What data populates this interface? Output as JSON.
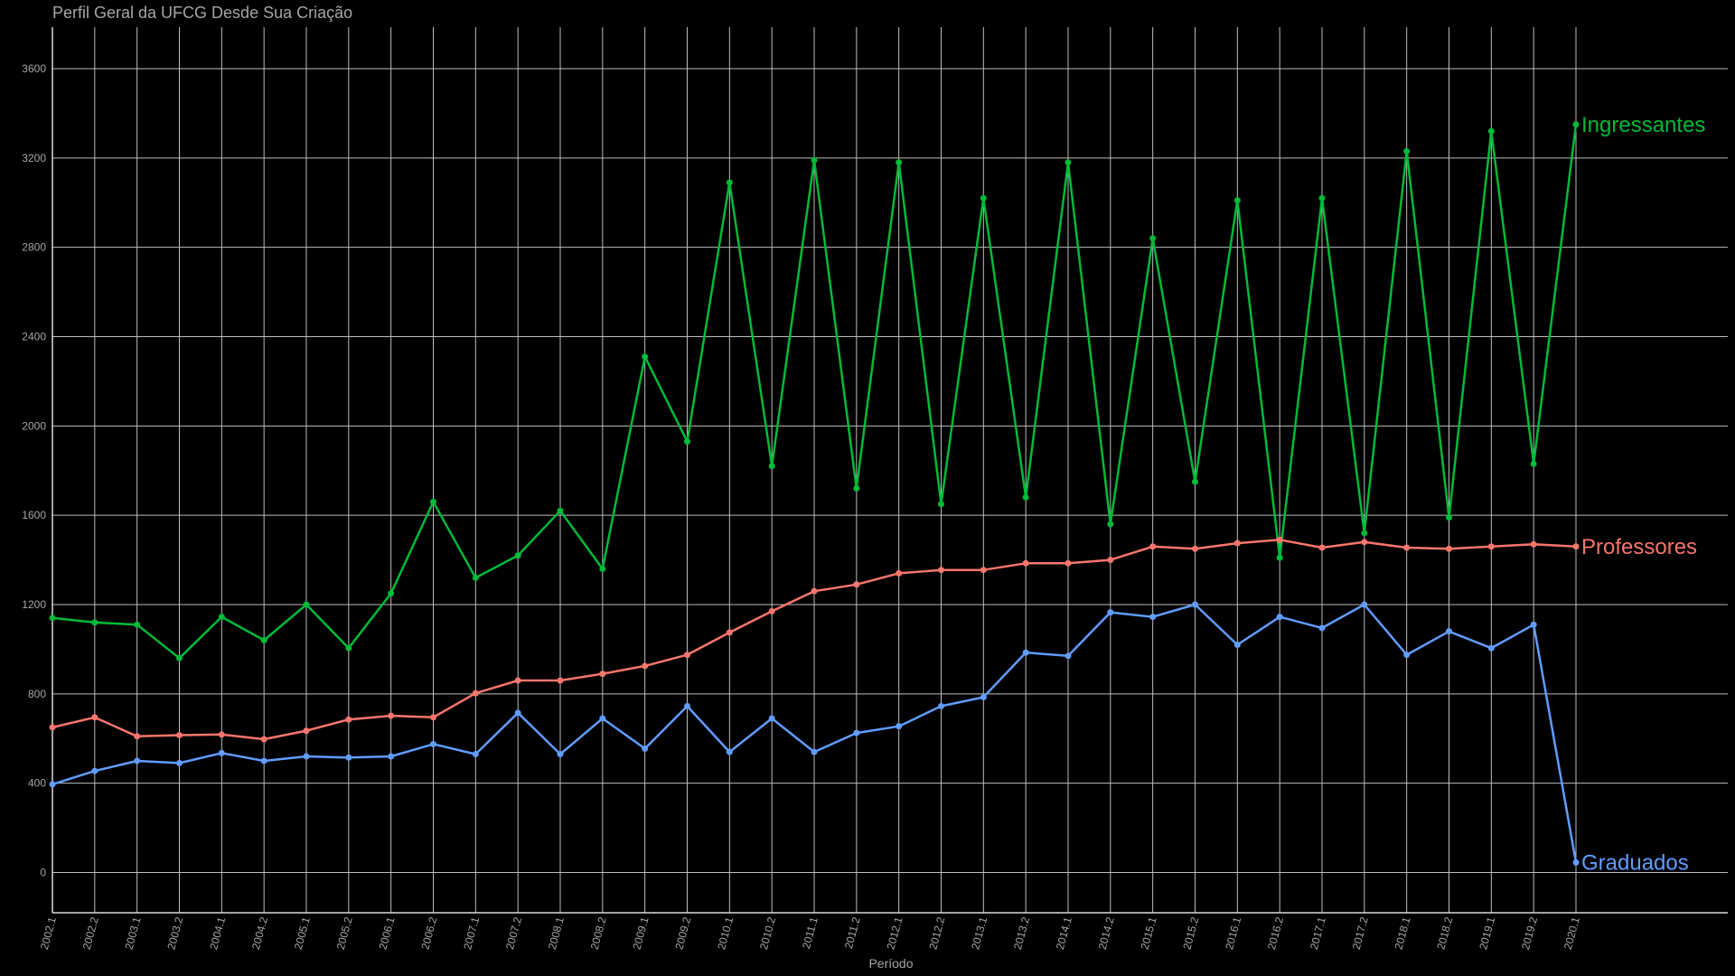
{
  "chart_data": {
    "type": "line",
    "title": "Perfil Geral da UFCG Desde Sua Criação",
    "xlabel": "Período",
    "ylabel": "",
    "x": [
      "2002.1",
      "2002.2",
      "2003.1",
      "2003.2",
      "2004.1",
      "2004.2",
      "2005.1",
      "2005.2",
      "2006.1",
      "2006.2",
      "2007.1",
      "2007.2",
      "2008.1",
      "2008.2",
      "2009.1",
      "2009.2",
      "2010.1",
      "2010.2",
      "2011.1",
      "2011.2",
      "2012.1",
      "2012.2",
      "2013.1",
      "2013.2",
      "2014.1",
      "2014.2",
      "2015.1",
      "2015.2",
      "2016.1",
      "2016.2",
      "2017.1",
      "2017.2",
      "2018.1",
      "2018.2",
      "2019.1",
      "2019.2",
      "2020.1"
    ],
    "yticks": [
      "0",
      "400",
      "800",
      "1200",
      "1600",
      "2000",
      "2400",
      "2800",
      "3200",
      "3600"
    ],
    "ylim": [
      -180,
      3800
    ],
    "grid": true,
    "legend": "end-of-line labels",
    "series": [
      {
        "name": "Ingressantes",
        "color": "#00ba38",
        "values": [
          1140,
          1120,
          1110,
          960,
          1145,
          1040,
          1200,
          1005,
          1250,
          1660,
          1320,
          1420,
          1620,
          1360,
          2310,
          1930,
          3090,
          1820,
          3190,
          1720,
          3180,
          1650,
          3020,
          1680,
          3180,
          1560,
          2840,
          1750,
          3010,
          1410,
          3020,
          1520,
          3230,
          1590,
          3320,
          1830,
          3350
        ]
      },
      {
        "name": "Professores",
        "color": "#f8766d",
        "values": [
          650,
          695,
          610,
          615,
          618,
          597,
          635,
          685,
          702,
          695,
          803,
          860,
          860,
          890,
          925,
          975,
          1075,
          1170,
          1260,
          1290,
          1340,
          1355,
          1355,
          1385,
          1385,
          1400,
          1460,
          1450,
          1475,
          1490,
          1455,
          1480,
          1455,
          1450,
          1460,
          1470,
          1460
        ]
      },
      {
        "name": "Graduados",
        "color": "#619cff",
        "values": [
          395,
          455,
          500,
          490,
          535,
          500,
          520,
          515,
          520,
          575,
          530,
          715,
          530,
          690,
          555,
          745,
          540,
          690,
          540,
          625,
          655,
          745,
          785,
          985,
          970,
          1165,
          1145,
          1200,
          1020,
          1145,
          1095,
          1200,
          975,
          1080,
          1005,
          1110,
          45
        ]
      }
    ]
  }
}
